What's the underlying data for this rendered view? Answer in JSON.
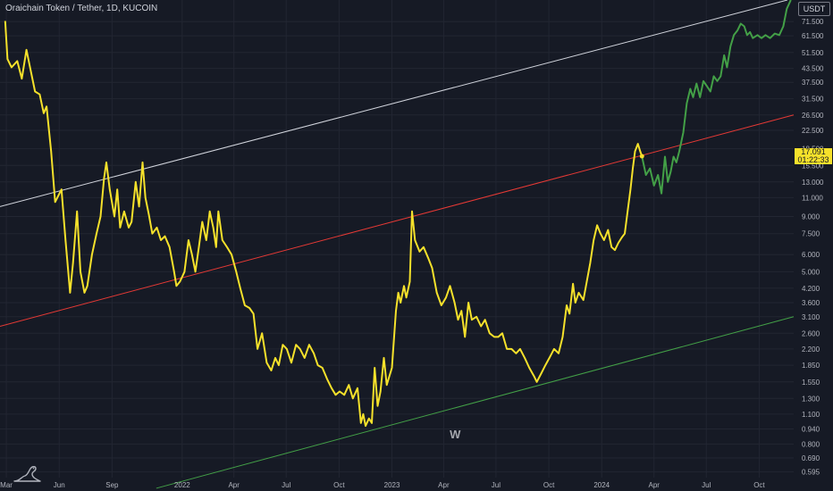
{
  "header": {
    "symbol_title": "Oraichain Token / Tether, 1D, KUCOIN",
    "currency": "USDT"
  },
  "price_label": {
    "price": "17.091",
    "countdown": "01:22:33"
  },
  "colors": {
    "background": "#161a25",
    "grid": "#222632",
    "price_line": "#f5e12b",
    "projection": "#43a047",
    "channel_upper": "#d1d4dc",
    "channel_middle": "#e53935",
    "channel_lower": "#43a047",
    "axis_text": "#b2b5be"
  },
  "icons": {
    "logo": "tradingview-dino-icon"
  },
  "chart_data": {
    "type": "line",
    "y_scale": "log",
    "ylim": [
      0.56,
      90
    ],
    "xlim": [
      "2021-02-18",
      "2024-11-30"
    ],
    "y_ticks": [
      "71.500",
      "61.500",
      "51.500",
      "43.500",
      "37.500",
      "31.500",
      "26.500",
      "22.500",
      "18.500",
      "15.500",
      "13.000",
      "11.000",
      "9.000",
      "7.500",
      "6.000",
      "5.000",
      "4.200",
      "3.600",
      "3.100",
      "2.600",
      "2.200",
      "1.850",
      "1.550",
      "1.300",
      "1.100",
      "0.940",
      "0.800",
      "0.690",
      "0.595"
    ],
    "x_ticks": [
      {
        "label": "Mar",
        "date": "2021-03-01"
      },
      {
        "label": "Jun",
        "date": "2021-06-01"
      },
      {
        "label": "Sep",
        "date": "2021-09-01"
      },
      {
        "label": "2022",
        "date": "2022-01-01"
      },
      {
        "label": "Apr",
        "date": "2022-04-01"
      },
      {
        "label": "Jul",
        "date": "2022-07-01"
      },
      {
        "label": "Oct",
        "date": "2022-10-01"
      },
      {
        "label": "2023",
        "date": "2023-01-01"
      },
      {
        "label": "Apr",
        "date": "2023-04-01"
      },
      {
        "label": "Jul",
        "date": "2023-07-01"
      },
      {
        "label": "Oct",
        "date": "2023-10-01"
      },
      {
        "label": "2024",
        "date": "2024-01-01"
      },
      {
        "label": "Apr",
        "date": "2024-04-01"
      },
      {
        "label": "Jul",
        "date": "2024-07-01"
      },
      {
        "label": "Oct",
        "date": "2024-10-01"
      }
    ],
    "series": [
      {
        "color": "#f5e12b",
        "points": [
          [
            "2021-02-27",
            72
          ],
          [
            "2021-03-03",
            48
          ],
          [
            "2021-03-10",
            44
          ],
          [
            "2021-03-20",
            47
          ],
          [
            "2021-03-28",
            39
          ],
          [
            "2021-04-05",
            53
          ],
          [
            "2021-04-12",
            43
          ],
          [
            "2021-04-20",
            34
          ],
          [
            "2021-04-28",
            33
          ],
          [
            "2021-05-05",
            27
          ],
          [
            "2021-05-10",
            29
          ],
          [
            "2021-05-18",
            18
          ],
          [
            "2021-05-25",
            10.5
          ],
          [
            "2021-06-05",
            12
          ],
          [
            "2021-06-12",
            7
          ],
          [
            "2021-06-20",
            4
          ],
          [
            "2021-06-25",
            5.5
          ],
          [
            "2021-07-02",
            9.5
          ],
          [
            "2021-07-08",
            5
          ],
          [
            "2021-07-15",
            4
          ],
          [
            "2021-07-20",
            4.3
          ],
          [
            "2021-07-28",
            6
          ],
          [
            "2021-08-05",
            7.5
          ],
          [
            "2021-08-12",
            9
          ],
          [
            "2021-08-18",
            13.5
          ],
          [
            "2021-08-22",
            16
          ],
          [
            "2021-08-28",
            12
          ],
          [
            "2021-09-05",
            9
          ],
          [
            "2021-09-10",
            12
          ],
          [
            "2021-09-15",
            8
          ],
          [
            "2021-09-22",
            9.5
          ],
          [
            "2021-09-30",
            8
          ],
          [
            "2021-10-05",
            8.5
          ],
          [
            "2021-10-12",
            13
          ],
          [
            "2021-10-18",
            10
          ],
          [
            "2021-10-24",
            16
          ],
          [
            "2021-10-29",
            11
          ],
          [
            "2021-11-04",
            9.2
          ],
          [
            "2021-11-10",
            7.5
          ],
          [
            "2021-11-18",
            8
          ],
          [
            "2021-11-25",
            7
          ],
          [
            "2021-12-02",
            7.3
          ],
          [
            "2021-12-10",
            6.5
          ],
          [
            "2021-12-18",
            5
          ],
          [
            "2021-12-22",
            4.3
          ],
          [
            "2021-12-28",
            4.5
          ],
          [
            "2022-01-05",
            5
          ],
          [
            "2022-01-12",
            7
          ],
          [
            "2022-01-18",
            6
          ],
          [
            "2022-01-24",
            5
          ],
          [
            "2022-01-30",
            6.5
          ],
          [
            "2022-02-05",
            8.5
          ],
          [
            "2022-02-12",
            7
          ],
          [
            "2022-02-18",
            9.5
          ],
          [
            "2022-02-24",
            8
          ],
          [
            "2022-03-01",
            6.5
          ],
          [
            "2022-03-05",
            9.5
          ],
          [
            "2022-03-12",
            7
          ],
          [
            "2022-03-20",
            6.5
          ],
          [
            "2022-03-28",
            6
          ],
          [
            "2022-04-05",
            5
          ],
          [
            "2022-04-12",
            4.2
          ],
          [
            "2022-04-20",
            3.5
          ],
          [
            "2022-04-28",
            3.4
          ],
          [
            "2022-05-05",
            3.2
          ],
          [
            "2022-05-12",
            2.2
          ],
          [
            "2022-05-20",
            2.6
          ],
          [
            "2022-05-28",
            1.9
          ],
          [
            "2022-06-05",
            1.75
          ],
          [
            "2022-06-12",
            2
          ],
          [
            "2022-06-18",
            1.85
          ],
          [
            "2022-06-25",
            2.3
          ],
          [
            "2022-07-02",
            2.2
          ],
          [
            "2022-07-10",
            1.9
          ],
          [
            "2022-07-18",
            2.3
          ],
          [
            "2022-07-25",
            2.2
          ],
          [
            "2022-08-02",
            2
          ],
          [
            "2022-08-10",
            2.3
          ],
          [
            "2022-08-18",
            2.1
          ],
          [
            "2022-08-25",
            1.85
          ],
          [
            "2022-09-02",
            1.8
          ],
          [
            "2022-09-10",
            1.6
          ],
          [
            "2022-09-18",
            1.45
          ],
          [
            "2022-09-25",
            1.35
          ],
          [
            "2022-10-02",
            1.4
          ],
          [
            "2022-10-10",
            1.35
          ],
          [
            "2022-10-18",
            1.5
          ],
          [
            "2022-10-25",
            1.3
          ],
          [
            "2022-11-02",
            1.45
          ],
          [
            "2022-11-08",
            1
          ],
          [
            "2022-11-12",
            1.1
          ],
          [
            "2022-11-16",
            0.97
          ],
          [
            "2022-11-22",
            1.05
          ],
          [
            "2022-11-27",
            1
          ],
          [
            "2022-12-02",
            1.8
          ],
          [
            "2022-12-07",
            1.2
          ],
          [
            "2022-12-12",
            1.4
          ],
          [
            "2022-12-18",
            2
          ],
          [
            "2022-12-23",
            1.5
          ],
          [
            "2023-01-01",
            1.8
          ],
          [
            "2023-01-08",
            3.3
          ],
          [
            "2023-01-12",
            4
          ],
          [
            "2023-01-16",
            3.6
          ],
          [
            "2023-01-22",
            4.3
          ],
          [
            "2023-01-26",
            3.8
          ],
          [
            "2023-02-01",
            4.5
          ],
          [
            "2023-02-05",
            9.5
          ],
          [
            "2023-02-10",
            7
          ],
          [
            "2023-02-18",
            6.2
          ],
          [
            "2023-02-25",
            6.5
          ],
          [
            "2023-03-05",
            5.8
          ],
          [
            "2023-03-12",
            5.2
          ],
          [
            "2023-03-20",
            4
          ],
          [
            "2023-03-28",
            3.5
          ],
          [
            "2023-04-05",
            3.8
          ],
          [
            "2023-04-12",
            4.3
          ],
          [
            "2023-04-20",
            3.6
          ],
          [
            "2023-04-26",
            3
          ],
          [
            "2023-05-02",
            3.3
          ],
          [
            "2023-05-08",
            2.5
          ],
          [
            "2023-05-14",
            3.6
          ],
          [
            "2023-05-20",
            3
          ],
          [
            "2023-05-28",
            3.1
          ],
          [
            "2023-06-05",
            2.8
          ],
          [
            "2023-06-12",
            3
          ],
          [
            "2023-06-20",
            2.6
          ],
          [
            "2023-06-28",
            2.5
          ],
          [
            "2023-07-05",
            2.5
          ],
          [
            "2023-07-12",
            2.6
          ],
          [
            "2023-07-20",
            2.2
          ],
          [
            "2023-07-28",
            2.2
          ],
          [
            "2023-08-05",
            2.1
          ],
          [
            "2023-08-12",
            2.2
          ],
          [
            "2023-08-20",
            2
          ],
          [
            "2023-08-28",
            1.8
          ],
          [
            "2023-09-05",
            1.65
          ],
          [
            "2023-09-10",
            1.55
          ],
          [
            "2023-09-18",
            1.7
          ],
          [
            "2023-09-25",
            1.85
          ],
          [
            "2023-10-02",
            2
          ],
          [
            "2023-10-10",
            2.2
          ],
          [
            "2023-10-18",
            2.1
          ],
          [
            "2023-10-25",
            2.5
          ],
          [
            "2023-11-01",
            3.5
          ],
          [
            "2023-11-06",
            3.2
          ],
          [
            "2023-11-12",
            4.4
          ],
          [
            "2023-11-16",
            3.6
          ],
          [
            "2023-11-22",
            4
          ],
          [
            "2023-11-30",
            3.7
          ],
          [
            "2023-12-06",
            4.5
          ],
          [
            "2023-12-12",
            5.5
          ],
          [
            "2023-12-18",
            7
          ],
          [
            "2023-12-24",
            8.2
          ],
          [
            "2023-12-30",
            7.5
          ],
          [
            "2024-01-05",
            7
          ],
          [
            "2024-01-12",
            7.8
          ],
          [
            "2024-01-18",
            6.5
          ],
          [
            "2024-01-24",
            6.3
          ],
          [
            "2024-01-30",
            6.8
          ],
          [
            "2024-02-05",
            7.2
          ],
          [
            "2024-02-10",
            7.5
          ],
          [
            "2024-02-15",
            9.5
          ],
          [
            "2024-02-20",
            12
          ],
          [
            "2024-02-24",
            15
          ],
          [
            "2024-02-28",
            18
          ],
          [
            "2024-03-04",
            19.5
          ],
          [
            "2024-03-08",
            18
          ],
          [
            "2024-03-11",
            17.091
          ]
        ]
      },
      {
        "color": "#43a047",
        "points": [
          [
            "2024-03-11",
            17.091
          ],
          [
            "2024-03-18",
            14
          ],
          [
            "2024-03-25",
            15
          ],
          [
            "2024-04-01",
            12.5
          ],
          [
            "2024-04-08",
            14
          ],
          [
            "2024-04-14",
            11.5
          ],
          [
            "2024-04-20",
            17
          ],
          [
            "2024-04-25",
            13
          ],
          [
            "2024-04-30",
            14.5
          ],
          [
            "2024-05-05",
            17
          ],
          [
            "2024-05-10",
            16
          ],
          [
            "2024-05-15",
            18
          ],
          [
            "2024-05-22",
            22
          ],
          [
            "2024-05-28",
            30
          ],
          [
            "2024-06-03",
            35
          ],
          [
            "2024-06-08",
            32
          ],
          [
            "2024-06-14",
            37
          ],
          [
            "2024-06-20",
            32
          ],
          [
            "2024-06-26",
            38
          ],
          [
            "2024-07-02",
            36
          ],
          [
            "2024-07-08",
            34
          ],
          [
            "2024-07-14",
            40
          ],
          [
            "2024-07-20",
            38
          ],
          [
            "2024-07-26",
            40
          ],
          [
            "2024-08-01",
            50
          ],
          [
            "2024-08-06",
            44
          ],
          [
            "2024-08-12",
            55
          ],
          [
            "2024-08-18",
            62
          ],
          [
            "2024-08-24",
            65
          ],
          [
            "2024-08-30",
            70
          ],
          [
            "2024-09-05",
            68
          ],
          [
            "2024-09-10",
            62
          ],
          [
            "2024-09-15",
            64
          ],
          [
            "2024-09-20",
            60
          ],
          [
            "2024-09-28",
            62
          ],
          [
            "2024-10-05",
            60
          ],
          [
            "2024-10-12",
            62
          ],
          [
            "2024-10-20",
            60
          ],
          [
            "2024-10-28",
            63
          ],
          [
            "2024-11-05",
            62
          ],
          [
            "2024-11-12",
            68
          ],
          [
            "2024-11-18",
            82
          ],
          [
            "2024-11-25",
            90
          ]
        ]
      }
    ],
    "trend_lines": [
      {
        "color": "#d1d4dc",
        "from": [
          "2021-02-18",
          10
        ],
        "to": [
          "2024-11-19",
          90
        ]
      },
      {
        "color": "#e53935",
        "from": [
          "2021-02-18",
          2.8
        ],
        "to": [
          "2024-11-30",
          26.5
        ]
      },
      {
        "color": "#43a047",
        "from": [
          "2021-11-17",
          0.5
        ],
        "to": [
          "2024-11-30",
          3.1
        ]
      }
    ],
    "current_price_dot": [
      "2024-03-11",
      17.091
    ],
    "annotations": [
      {
        "text": "W",
        "date": "2023-04-21",
        "price": 0.85
      }
    ]
  }
}
